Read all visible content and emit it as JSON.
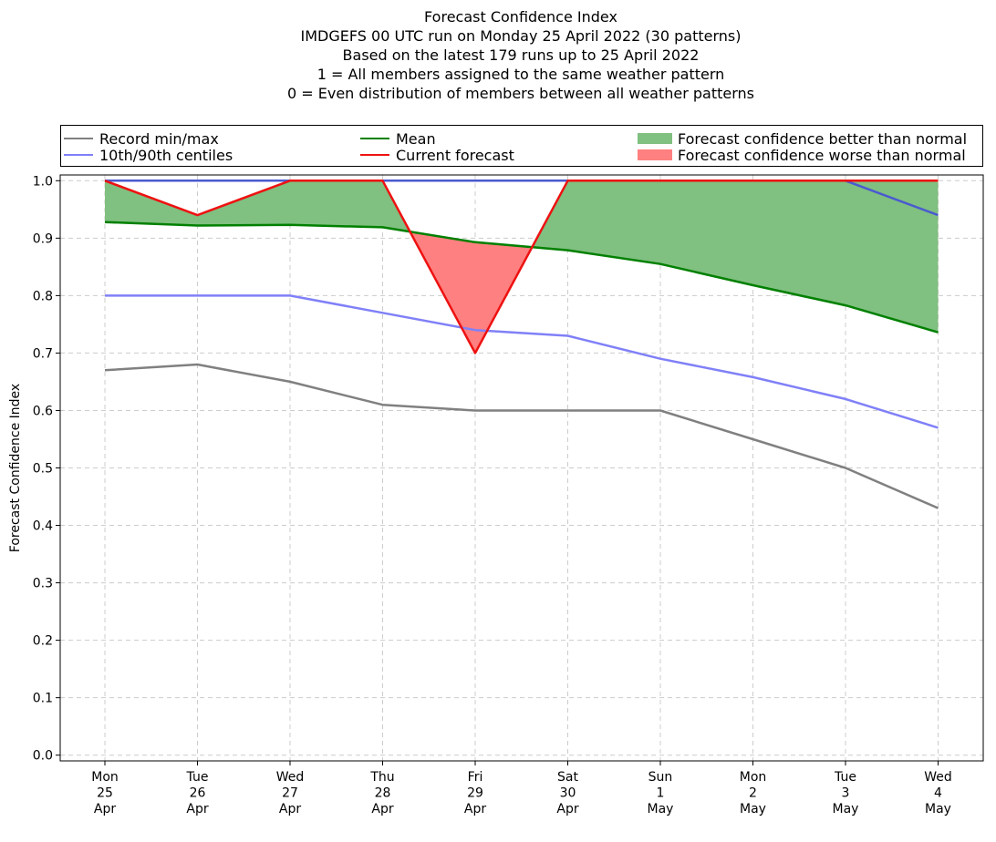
{
  "chart_data": {
    "type": "line",
    "title_lines": [
      "Forecast Confidence Index",
      "IMDGEFS 00 UTC run on Monday 25 April 2022 (30 patterns)",
      "Based on the latest 179 runs up to 25 April 2022",
      "1 = All members assigned to the same weather pattern",
      "0 = Even distribution of members between all weather patterns"
    ],
    "ylabel": "Forecast Confidence Index",
    "xlabel": "",
    "ylim": [
      -0.01,
      1.01
    ],
    "yticks": [
      "0.0",
      "0.1",
      "0.2",
      "0.3",
      "0.4",
      "0.5",
      "0.6",
      "0.7",
      "0.8",
      "0.9",
      "1.0"
    ],
    "x_labels": [
      [
        "Mon",
        "25",
        "Apr"
      ],
      [
        "Tue",
        "26",
        "Apr"
      ],
      [
        "Wed",
        "27",
        "Apr"
      ],
      [
        "Thu",
        "28",
        "Apr"
      ],
      [
        "Fri",
        "29",
        "Apr"
      ],
      [
        "Sat",
        "30",
        "Apr"
      ],
      [
        "Sun",
        "1",
        "May"
      ],
      [
        "Mon",
        "2",
        "May"
      ],
      [
        "Tue",
        "3",
        "May"
      ],
      [
        "Wed",
        "4",
        "May"
      ]
    ],
    "grid": true,
    "legend_placement": "top, above plot",
    "series": [
      {
        "name": "Record min/max",
        "role": "record_min",
        "color": "#808080",
        "values": [
          0.67,
          0.68,
          0.65,
          0.61,
          0.6,
          0.6,
          0.6,
          0.55,
          0.5,
          0.43
        ]
      },
      {
        "role": "record_max",
        "color": "#808080",
        "values": [
          1.0,
          1.0,
          1.0,
          1.0,
          1.0,
          1.0,
          1.0,
          1.0,
          1.0,
          1.0
        ]
      },
      {
        "name": "10th/90th centiles",
        "role": "p10",
        "color": "#8080f8",
        "values": [
          0.8,
          0.8,
          0.8,
          0.77,
          0.74,
          0.73,
          0.69,
          0.658,
          0.62,
          0.57
        ]
      },
      {
        "role": "p90",
        "color": "#4a5ad0",
        "values": [
          1.0,
          1.0,
          1.0,
          1.0,
          1.0,
          1.0,
          1.0,
          1.0,
          1.0,
          0.94
        ]
      },
      {
        "name": "Mean",
        "role": "mean",
        "color": "#008000",
        "values": [
          0.928,
          0.922,
          0.923,
          0.919,
          0.893,
          0.879,
          0.855,
          0.818,
          0.783,
          0.736
        ]
      },
      {
        "name": "Current forecast",
        "role": "current",
        "color": "#ee1111",
        "values": [
          1.0,
          0.94,
          1.0,
          1.0,
          0.7,
          1.0,
          1.0,
          1.0,
          1.0,
          1.0
        ]
      }
    ],
    "fills": [
      {
        "name": "Forecast confidence better than normal",
        "color": "#80c080"
      },
      {
        "name": "Forecast confidence worse than normal",
        "color": "#ff8080"
      }
    ]
  }
}
